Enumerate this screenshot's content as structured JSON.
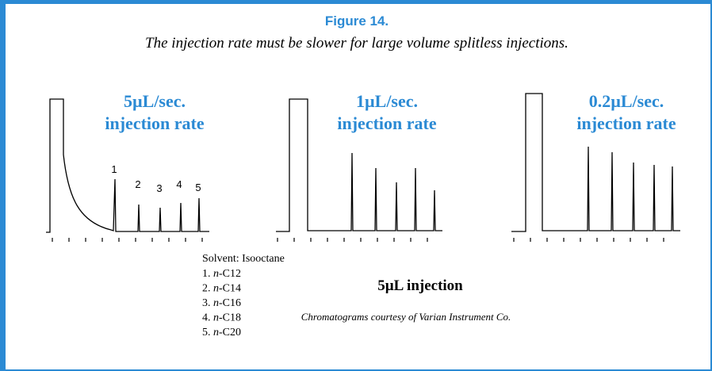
{
  "figure": {
    "title": "Figure 14.",
    "caption": "The injection rate must be slower for large volume splitless injections.",
    "panels": [
      {
        "line1": "5µL/sec.",
        "line2": "injection rate"
      },
      {
        "line1": "1µL/sec.",
        "line2": "injection rate"
      },
      {
        "line1": "0.2µL/sec.",
        "line2": "injection rate"
      }
    ],
    "peak_labels": [
      "1",
      "2",
      "3",
      "4",
      "5"
    ],
    "legend": {
      "solvent": "Solvent: Isooctane",
      "items": [
        {
          "number": "1.",
          "prefix": "n",
          "rest": "-C12"
        },
        {
          "number": "2.",
          "prefix": "n",
          "rest": "-C14"
        },
        {
          "number": "3.",
          "prefix": "n",
          "rest": "-C16"
        },
        {
          "number": "4.",
          "prefix": "n",
          "rest": "-C18"
        },
        {
          "number": "5.",
          "prefix": "n",
          "rest": "-C20"
        }
      ]
    },
    "injection_note": "5µL injection",
    "credit": "Chromatograms courtesy of Varian Instrument Co."
  }
}
